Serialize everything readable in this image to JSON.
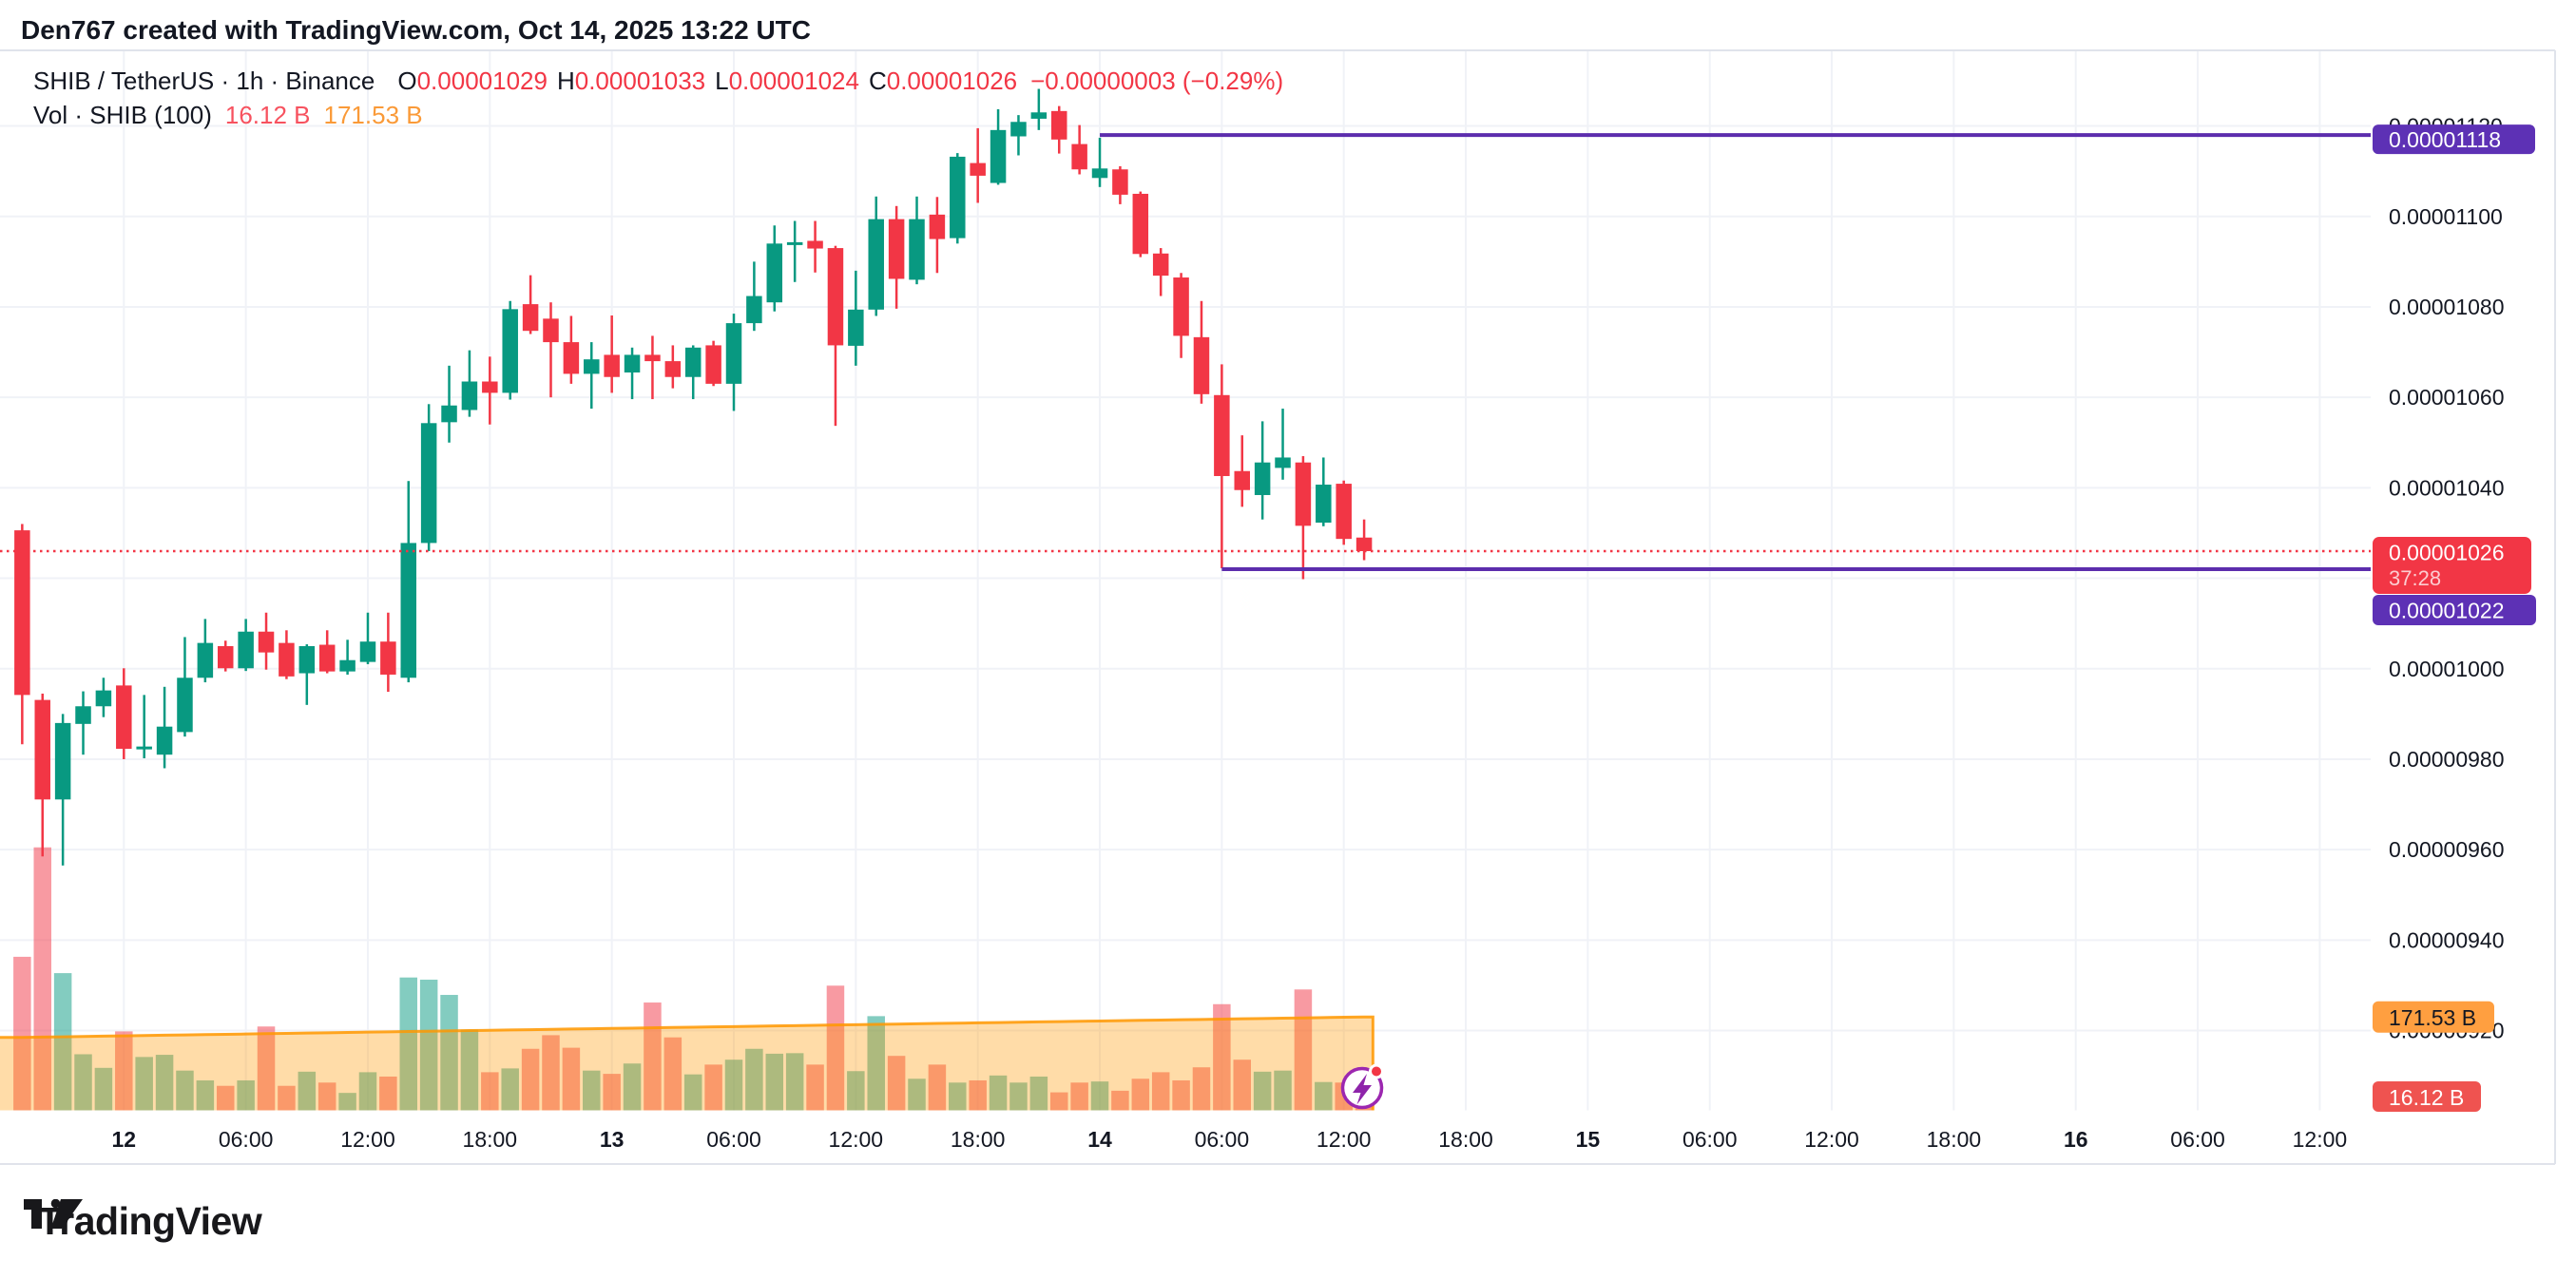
{
  "header": {
    "attribution": "Den767 created with TradingView.com, Oct 14, 2025 13:22 UTC"
  },
  "legend": {
    "title": "SHIB / TetherUS · 1h · Binance",
    "items": [
      {
        "label": "O",
        "value": "0.00001029"
      },
      {
        "label": "H",
        "value": "0.00001033"
      },
      {
        "label": "L",
        "value": "0.00001024"
      },
      {
        "label": "C",
        "value": "0.00001026"
      }
    ],
    "change": "−0.00000003 (−0.29%)",
    "vol_title": "Vol · SHIB (100)",
    "vol_value": "16.12 B",
    "vol_ma_value": "171.53 B"
  },
  "footer": {
    "brand": "TradingView"
  },
  "colors": {
    "up": "#089981",
    "down": "#f23645",
    "ma_orange": "#ff9800",
    "purple": "#5c2dad",
    "badge_purple": "#5d31b5",
    "badge_red": "#f23645",
    "vol_badge_red": "#ef5350",
    "badge_orange": "#ff9f40",
    "text": "#131722",
    "grid": "#f0f2f7",
    "frame": "#e0e3eb",
    "legend_vol_red": "#f7525f",
    "legend_vol_orange": "#fa9a38",
    "icon_purple": "#9c27b0"
  },
  "chart_data": {
    "type": "candlestick",
    "symbol": "SHIB / TetherUS",
    "interval": "1h",
    "exchange": "Binance",
    "note": "prices are e8 units: 1026 = 0.00001026; candles hourly from Oct 11 19:00 UTC; volume in billions SHIB",
    "first_candle_hour_offset": -5,
    "candles": [
      [
        1030.6,
        1032,
        983.3,
        994.2,
        282
      ],
      [
        993.1,
        994.5,
        958.5,
        971.1,
        483
      ],
      [
        971.1,
        990,
        956.5,
        988,
        252
      ],
      [
        987.8,
        995,
        981,
        991.7,
        103
      ],
      [
        991.7,
        998,
        989.3,
        995.2,
        78
      ],
      [
        996.3,
        1000.1,
        980,
        982.3,
        145
      ],
      [
        982.3,
        994.2,
        980.2,
        982.8,
        98
      ],
      [
        981,
        996,
        978,
        987.2,
        102
      ],
      [
        986,
        1007,
        985,
        998,
        73
      ],
      [
        998,
        1011,
        997,
        1005.7,
        55
      ],
      [
        1005,
        1006.2,
        999.4,
        1000.1,
        45
      ],
      [
        1000.1,
        1011,
        999.5,
        1008.2,
        55
      ],
      [
        1008.2,
        1012.4,
        999.8,
        1003.6,
        154
      ],
      [
        1005.7,
        1008.5,
        997.7,
        998.3,
        45
      ],
      [
        999,
        1005.4,
        992,
        1005,
        71
      ],
      [
        1005.3,
        1008.5,
        999,
        999.4,
        51
      ],
      [
        999.4,
        1006.4,
        998.7,
        1001.9,
        32
      ],
      [
        1001.5,
        1012.4,
        1001,
        1006,
        70
      ],
      [
        1006,
        1012.4,
        994.9,
        998.7,
        62
      ],
      [
        998,
        1041.5,
        997,
        1027.8,
        244
      ],
      [
        1027.8,
        1058.5,
        1026,
        1054.3,
        240
      ],
      [
        1054.5,
        1067,
        1050,
        1058.2,
        212
      ],
      [
        1057.2,
        1070.4,
        1055.7,
        1063.5,
        148
      ],
      [
        1063.5,
        1069,
        1054,
        1061,
        70
      ],
      [
        1061,
        1081.3,
        1059.5,
        1079.5,
        77
      ],
      [
        1080.6,
        1087,
        1074,
        1074.7,
        113
      ],
      [
        1077.4,
        1081,
        1060,
        1072.2,
        138
      ],
      [
        1072.2,
        1078,
        1063,
        1065.2,
        115
      ],
      [
        1065.2,
        1072.2,
        1057.5,
        1068.4,
        73
      ],
      [
        1069.4,
        1078.1,
        1061,
        1064.5,
        67
      ],
      [
        1065.5,
        1071,
        1059.6,
        1069.4,
        86
      ],
      [
        1069.4,
        1073.6,
        1059.6,
        1068,
        198
      ],
      [
        1068,
        1071.5,
        1062,
        1064.5,
        134
      ],
      [
        1064.5,
        1071.5,
        1059.6,
        1071,
        66
      ],
      [
        1071.5,
        1072.5,
        1062.5,
        1063,
        84
      ],
      [
        1063,
        1078.5,
        1057,
        1076.4,
        93
      ],
      [
        1076.4,
        1090,
        1074.7,
        1082.4,
        113
      ],
      [
        1081,
        1098,
        1079,
        1094,
        104
      ],
      [
        1094,
        1099,
        1085.5,
        1094.3,
        105
      ],
      [
        1094.6,
        1099,
        1087.6,
        1092.9,
        84
      ],
      [
        1093,
        1093.5,
        1053.7,
        1071.5,
        229
      ],
      [
        1071.4,
        1088,
        1067,
        1079.4,
        72
      ],
      [
        1079.4,
        1104.4,
        1078,
        1099.4,
        173
      ],
      [
        1099.4,
        1102.3,
        1079.6,
        1086.2,
        100
      ],
      [
        1086,
        1104.4,
        1085,
        1099.4,
        58
      ],
      [
        1100.4,
        1104.3,
        1087.5,
        1095,
        84
      ],
      [
        1095.2,
        1114,
        1094,
        1113.2,
        51
      ],
      [
        1111.8,
        1119.5,
        1103,
        1109,
        55
      ],
      [
        1107.4,
        1123.7,
        1107,
        1119.1,
        64
      ],
      [
        1117.7,
        1122.4,
        1113.5,
        1120.9,
        51
      ],
      [
        1121.6,
        1128.2,
        1119.1,
        1123,
        62
      ],
      [
        1123.3,
        1124.4,
        1113.9,
        1117,
        33
      ],
      [
        1116,
        1120.2,
        1109.3,
        1110.4,
        51
      ],
      [
        1108.5,
        1117.4,
        1106.5,
        1110.6,
        53
      ],
      [
        1110.4,
        1111.1,
        1102.7,
        1104.8,
        36
      ],
      [
        1105,
        1105.5,
        1091,
        1091.7,
        58
      ],
      [
        1091.8,
        1093,
        1082.4,
        1086.9,
        70
      ],
      [
        1086.5,
        1087.5,
        1068.7,
        1073.6,
        55
      ],
      [
        1073.3,
        1081.3,
        1058.6,
        1060.7,
        79
      ],
      [
        1060.5,
        1067.3,
        1022.2,
        1042.6,
        195
      ],
      [
        1043.7,
        1051.6,
        1035.8,
        1039.5,
        93
      ],
      [
        1038.4,
        1054.7,
        1033,
        1045.6,
        71
      ],
      [
        1044.4,
        1057.5,
        1041.8,
        1046.7,
        73
      ],
      [
        1045.6,
        1047,
        1019.8,
        1031.6,
        222
      ],
      [
        1032.3,
        1046.7,
        1031.5,
        1040.7,
        52
      ],
      [
        1040.9,
        1041.6,
        1027.4,
        1028.7,
        51
      ],
      [
        1029,
        1033,
        1024,
        1026,
        16.12
      ]
    ],
    "volume_unit": "B",
    "volume_ma": {
      "period": 100,
      "start_b": 134,
      "end_b": 171.53
    },
    "hlines": [
      {
        "price_e8": 1118,
        "label": "0.00001118",
        "start_hour": 48
      },
      {
        "price_e8": 1022,
        "label": "0.00001022",
        "start_hour": 54
      }
    ],
    "last_price": {
      "price_e8": 1026,
      "label": "0.00001026",
      "countdown": "37:28"
    },
    "vol_badges": [
      {
        "value_b": 171.53,
        "label": "171.53 B",
        "kind": "ma"
      },
      {
        "value_b": 16.12,
        "label": "16.12 B",
        "kind": "last"
      }
    ],
    "y_ticks": [
      {
        "v": 920,
        "label": "0.00000920"
      },
      {
        "v": 940,
        "label": "0.00000940"
      },
      {
        "v": 960,
        "label": "0.00000960"
      },
      {
        "v": 980,
        "label": "0.00000980"
      },
      {
        "v": 1000,
        "label": "0.00001000"
      },
      {
        "v": 1020,
        "label": "0.00001020"
      },
      {
        "v": 1040,
        "label": "0.00001040"
      },
      {
        "v": 1060,
        "label": "0.00001060"
      },
      {
        "v": 1080,
        "label": "0.00001080"
      },
      {
        "v": 1100,
        "label": "0.00001100"
      },
      {
        "v": 1120,
        "label": "0.00001120"
      }
    ],
    "x_ticks": [
      {
        "h": 0,
        "label": "12",
        "bold": true
      },
      {
        "h": 6,
        "label": "06:00"
      },
      {
        "h": 12,
        "label": "12:00"
      },
      {
        "h": 18,
        "label": "18:00"
      },
      {
        "h": 24,
        "label": "13",
        "bold": true
      },
      {
        "h": 30,
        "label": "06:00"
      },
      {
        "h": 36,
        "label": "12:00"
      },
      {
        "h": 42,
        "label": "18:00"
      },
      {
        "h": 48,
        "label": "14",
        "bold": true
      },
      {
        "h": 54,
        "label": "06:00"
      },
      {
        "h": 60,
        "label": "12:00"
      },
      {
        "h": 66,
        "label": "18:00"
      },
      {
        "h": 72,
        "label": "15",
        "bold": true
      },
      {
        "h": 78,
        "label": "06:00"
      },
      {
        "h": 84,
        "label": "12:00"
      },
      {
        "h": 90,
        "label": "18:00"
      },
      {
        "h": 96,
        "label": "16",
        "bold": true
      },
      {
        "h": 102,
        "label": "06:00"
      },
      {
        "h": 108,
        "label": "12:00"
      }
    ]
  }
}
